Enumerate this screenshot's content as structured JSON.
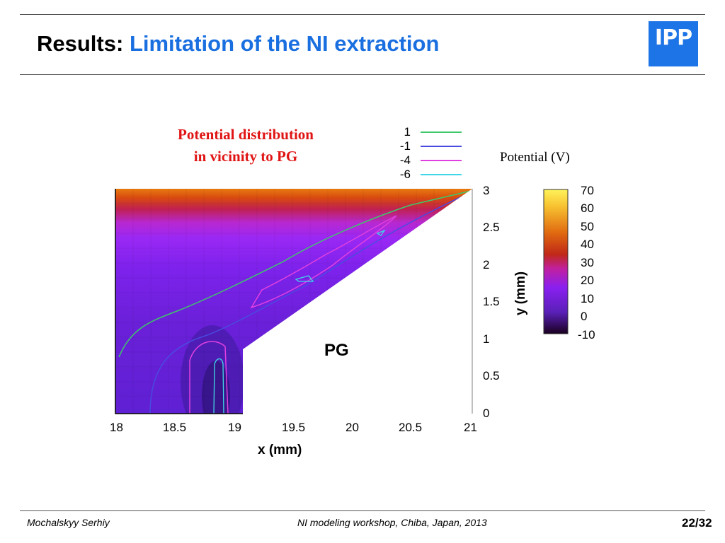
{
  "header": {
    "title_main": "Results:",
    "title_accent": "Limitation of the NI extraction",
    "logo_text": "IPP",
    "accent_color": "#1a6fe0",
    "logo_color": "#1d74e6"
  },
  "figure": {
    "caption_line1": "Potential distribution",
    "caption_line2": "in vicinity to PG",
    "colorbar_title": "Potential (V)",
    "region_label": "PG"
  },
  "chart_data": {
    "type": "heatmap",
    "xlabel": "x (mm)",
    "ylabel": "y (mm)",
    "xlim": [
      18,
      21
    ],
    "ylim": [
      0,
      3
    ],
    "x_ticks": [
      "18",
      "18.5",
      "19",
      "19.5",
      "20",
      "20.5",
      "21"
    ],
    "y_ticks": [
      "0",
      "0.5",
      "1",
      "1.5",
      "2",
      "2.5",
      "3"
    ],
    "colorbar": {
      "label": "Potential (V)",
      "range": [
        -10,
        70
      ],
      "ticks": [
        "70",
        "60",
        "50",
        "40",
        "30",
        "20",
        "10",
        "0",
        "-10"
      ]
    },
    "contours": [
      {
        "level": "1",
        "color": "#3ec86a"
      },
      {
        "level": "-1",
        "color": "#4a4ae0"
      },
      {
        "level": "-4",
        "color": "#e040e0"
      },
      {
        "level": "-6",
        "color": "#40d8e8"
      }
    ]
  },
  "footer": {
    "author": "Mochalskyy Serhiy",
    "event": "NI modeling workshop,  Chiba, Japan, 2013",
    "page": "22/32"
  }
}
